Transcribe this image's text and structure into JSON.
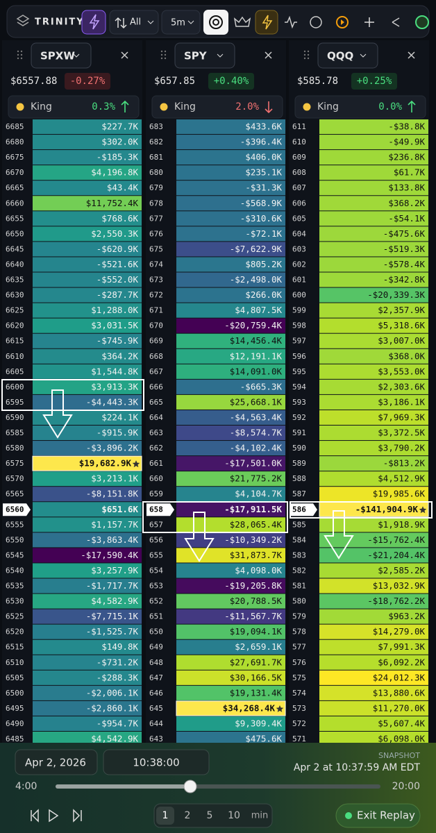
{
  "toolbar": {
    "brand": "TRINITY",
    "filter": "All",
    "interval": "5m"
  },
  "panels": [
    {
      "name": "SPXW",
      "price": "$6557.88",
      "change": "-0.27%",
      "change_dir": "down",
      "king_label": "King",
      "king_change": "0.3%",
      "king_dir": "up",
      "spot_index": 25,
      "king_index": 22,
      "strikes": [
        "6685",
        "6680",
        "6675",
        "6670",
        "6665",
        "6660",
        "6655",
        "6650",
        "6645",
        "6640",
        "6635",
        "6630",
        "6625",
        "6620",
        "6615",
        "6610",
        "6605",
        "6600",
        "6595",
        "6590",
        "6585",
        "6580",
        "6575",
        "6570",
        "6565",
        "6560",
        "6555",
        "6550",
        "6545",
        "6540",
        "6535",
        "6530",
        "6525",
        "6520",
        "6515",
        "6510",
        "6505",
        "6500",
        "6495",
        "6490",
        "6485"
      ],
      "values": [
        "$227.7K",
        "$302.0K",
        "-$185.3K",
        "$4,196.8K",
        "$43.4K",
        "$11,752.4K",
        "$768.6K",
        "$2,550.3K",
        "-$620.9K",
        "-$521.6K",
        "-$552.0K",
        "-$287.7K",
        "$1,288.0K",
        "$3,031.5K",
        "-$745.9K",
        "$364.2K",
        "$1,544.8K",
        "$3,913.3K",
        "-$4,443.3K",
        "$224.1K",
        "-$915.9K",
        "-$3,896.2K",
        "$19,682.9K",
        "$3,213.1K",
        "-$8,151.8K",
        "$651.6K",
        "$1,157.7K",
        "-$3,863.4K",
        "-$17,590.4K",
        "$3,257.9K",
        "-$1,717.7K",
        "$4,582.9K",
        "-$7,715.1K",
        "-$1,525.7K",
        "$149.8K",
        "-$731.2K",
        "-$288.3K",
        "-$2,006.1K",
        "-$2,860.1K",
        "-$954.7K",
        "$4,542.9K"
      ]
    },
    {
      "name": "SPY",
      "price": "$657.85",
      "change": "+0.40%",
      "change_dir": "up",
      "king_label": "King",
      "king_change": "2.0%",
      "king_dir": "down",
      "spot_index": 25,
      "king_index": 38,
      "strikes": [
        "683",
        "682",
        "681",
        "680",
        "679",
        "678",
        "677",
        "676",
        "675",
        "674",
        "673",
        "672",
        "671",
        "670",
        "669",
        "668",
        "667",
        "666",
        "665",
        "664",
        "663",
        "662",
        "661",
        "660",
        "659",
        "658",
        "657",
        "656",
        "655",
        "654",
        "653",
        "652",
        "651",
        "650",
        "649",
        "648",
        "647",
        "646",
        "645",
        "644",
        "643"
      ],
      "values": [
        "$433.6K",
        "-$396.4K",
        "$406.0K",
        "$235.1K",
        "-$31.3K",
        "-$568.9K",
        "-$310.6K",
        "-$72.1K",
        "-$7,622.9K",
        "$805.2K",
        "-$2,498.0K",
        "$266.0K",
        "$4,807.5K",
        "-$20,759.4K",
        "$14,456.4K",
        "$12,191.1K",
        "$14,091.0K",
        "-$665.3K",
        "$25,668.1K",
        "-$4,563.4K",
        "-$8,574.7K",
        "-$4,102.4K",
        "-$17,501.0K",
        "$21,775.2K",
        "$4,104.7K",
        "-$17,911.5K",
        "$28,065.4K",
        "-$10,349.2K",
        "$31,873.7K",
        "$4,098.0K",
        "-$19,205.8K",
        "$20,788.5K",
        "-$11,567.7K",
        "$19,094.1K",
        "$2,659.1K",
        "$27,691.7K",
        "$30,166.5K",
        "$19,131.4K",
        "$34,268.4K",
        "$9,309.4K",
        "$475.6K"
      ]
    },
    {
      "name": "QQQ",
      "price": "$585.78",
      "change": "+0.25%",
      "change_dir": "up",
      "king_label": "King",
      "king_change": "0.0%",
      "king_dir": "up",
      "spot_index": 25,
      "king_index": 25,
      "strikes": [
        "611",
        "610",
        "609",
        "608",
        "607",
        "606",
        "605",
        "604",
        "603",
        "602",
        "601",
        "600",
        "599",
        "598",
        "597",
        "596",
        "595",
        "594",
        "593",
        "592",
        "591",
        "590",
        "589",
        "588",
        "587",
        "586",
        "585",
        "584",
        "583",
        "582",
        "581",
        "580",
        "579",
        "578",
        "577",
        "576",
        "575",
        "574",
        "573",
        "572",
        "571"
      ],
      "values": [
        "-$38.8K",
        "-$49.9K",
        "$236.8K",
        "$61.7K",
        "$133.8K",
        "$368.2K",
        "-$54.1K",
        "-$475.6K",
        "-$519.3K",
        "-$578.4K",
        "-$342.8K",
        "-$20,339.3K",
        "$2,357.9K",
        "$5,318.6K",
        "$3,007.0K",
        "$368.0K",
        "$3,553.0K",
        "$2,303.6K",
        "$3,186.1K",
        "$7,969.3K",
        "$3,372.5K",
        "$3,790.2K",
        "-$813.2K",
        "$4,512.9K",
        "$19,985.6K",
        "-$141,904.9K",
        "$1,918.9K",
        "-$15,762.4K",
        "-$21,204.4K",
        "$2,585.2K",
        "$13,032.9K",
        "-$18,762.2K",
        "$963.2K",
        "$14,279.0K",
        "$7,991.3K",
        "$6,092.2K",
        "$24,012.3K",
        "$13,880.6K",
        "$11,270.0K",
        "$5,607.4K",
        "$6,098.0K"
      ]
    }
  ],
  "replay": {
    "date": "Apr 2, 2026",
    "time": "10:38:00",
    "snapshot_label": "SNAPSHOT",
    "snapshot_time": "Apr 2 at 10:37:59 AM EDT",
    "start": "4:00",
    "end": "20:00",
    "speeds": [
      "1",
      "2",
      "5",
      "10"
    ],
    "speed_unit": "min",
    "exit": "Exit Replay"
  }
}
